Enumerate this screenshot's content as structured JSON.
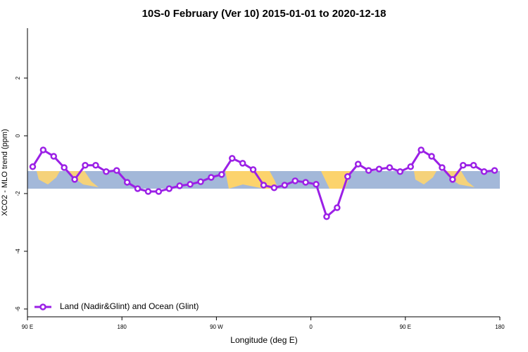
{
  "chart_data": {
    "type": "line",
    "title": "10S-0 February (Ver 10)   2015-01-01 to 2020-12-18",
    "x_label": "Longitude (deg E)",
    "y_label": "XCO2 - MLO trend (ppm)",
    "x": [
      95,
      105,
      115,
      125,
      135,
      145,
      155,
      165,
      175,
      185,
      195,
      205,
      215,
      225,
      235,
      245,
      255,
      265,
      275,
      285,
      295,
      305,
      315,
      325,
      335,
      345,
      355,
      365,
      375,
      385,
      395,
      405,
      415,
      425,
      435,
      445,
      455,
      465,
      475,
      485,
      495,
      505,
      515,
      525,
      535
    ],
    "series": [
      {
        "name": "Land (Nadir&Glint) and Ocean (Glint)",
        "color": "#9b20e6",
        "values": [
          -1.07,
          -0.49,
          -0.71,
          -1.1,
          -1.51,
          -1.02,
          -1.02,
          -1.24,
          -1.2,
          -1.61,
          -1.83,
          -1.93,
          -1.93,
          -1.83,
          -1.73,
          -1.68,
          -1.59,
          -1.44,
          -1.34,
          -0.78,
          -0.95,
          -1.17,
          -1.71,
          -1.8,
          -1.71,
          -1.56,
          -1.61,
          -1.68,
          -2.8,
          -2.49,
          -1.41,
          -0.98,
          -1.2,
          -1.15,
          -1.1,
          -1.24,
          -1.07,
          -0.49,
          -0.71,
          -1.1,
          -1.51,
          -1.02,
          -1.02,
          -1.24,
          -1.2
        ]
      }
    ],
    "xlim": [
      90,
      540
    ],
    "xticks": [
      {
        "value": 90,
        "label": "90 E"
      },
      180,
      {
        "value": 270,
        "label": "90 W"
      },
      {
        "value": 360,
        "label": "0"
      },
      {
        "value": 450,
        "label": "90 E"
      },
      {
        "value": 540,
        "label": "180"
      }
    ],
    "ylim": [
      -6.27,
      3.73
    ],
    "yticks": [
      -6,
      -4,
      -2,
      0,
      2
    ],
    "legend": "bottom-left"
  }
}
